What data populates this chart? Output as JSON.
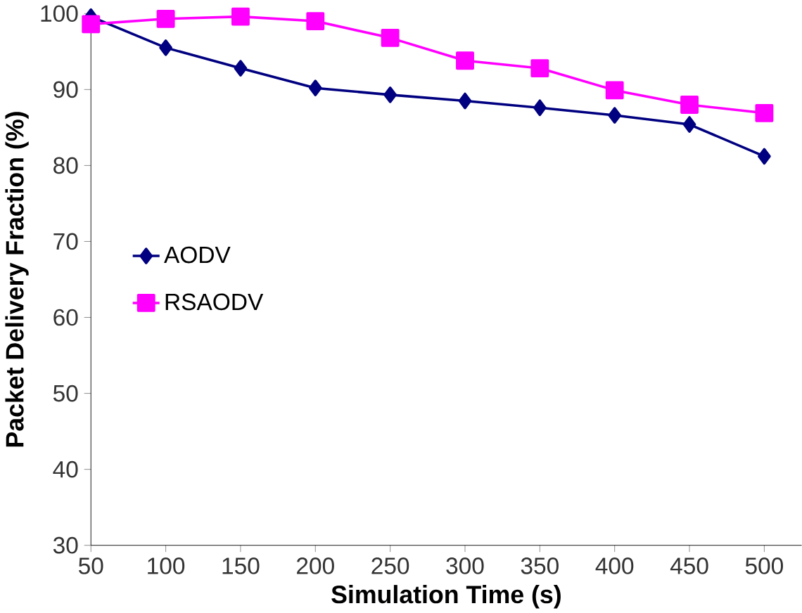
{
  "chart_data": {
    "type": "line",
    "xlabel": "Simulation Time (s)",
    "ylabel": "Packet Delivery Fraction (%)",
    "x": [
      50,
      100,
      150,
      200,
      250,
      300,
      350,
      400,
      450,
      500
    ],
    "series": [
      {
        "name": "AODV",
        "color": "#000080",
        "marker": "diamond",
        "values": [
          99.6,
          95.5,
          92.8,
          90.2,
          89.3,
          88.5,
          87.6,
          86.6,
          85.4,
          81.2
        ]
      },
      {
        "name": "RSAODV",
        "color": "#ff00ff",
        "marker": "square",
        "values": [
          98.6,
          99.3,
          99.6,
          99.0,
          96.8,
          93.8,
          92.8,
          89.9,
          88.0,
          86.9
        ]
      }
    ],
    "xlim": [
      50,
      525
    ],
    "xticks": [
      50,
      100,
      150,
      200,
      250,
      300,
      350,
      400,
      450,
      500
    ],
    "ylim": [
      30,
      100
    ],
    "yticks": [
      30,
      40,
      50,
      60,
      70,
      80,
      90,
      100
    ],
    "grid": false,
    "legend": "left"
  }
}
